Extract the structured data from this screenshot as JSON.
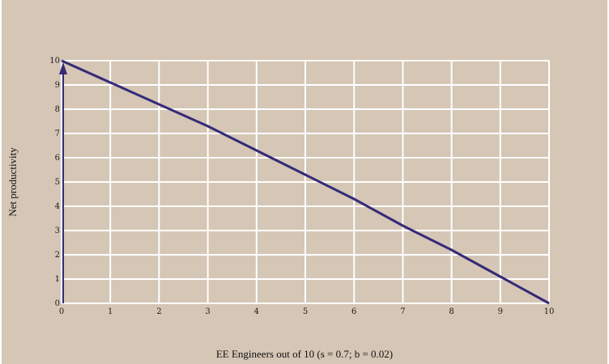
{
  "chart_data": {
    "type": "line",
    "title": "",
    "xlabel": "EE Engineers out of 10 (s = 0.7; b = 0.02)",
    "ylabel": "Net productivity",
    "xlim": [
      0,
      10
    ],
    "ylim": [
      0,
      10
    ],
    "xticks": [
      "0",
      "1",
      "2",
      "3",
      "4",
      "5",
      "6",
      "7",
      "8",
      "9",
      "10"
    ],
    "yticks": [
      "0",
      "1",
      "2",
      "3",
      "4",
      "5",
      "6",
      "7",
      "8",
      "9",
      "10"
    ],
    "grid": true,
    "series": [
      {
        "x": [
          0,
          1,
          2,
          3,
          4,
          5,
          6,
          7,
          8,
          9,
          10
        ],
        "values": [
          10,
          9.1,
          8.2,
          7.3,
          6.3,
          5.3,
          4.3,
          3.2,
          2.2,
          1.1,
          0
        ]
      }
    ],
    "annotations": [
      {
        "type": "arrow",
        "x": 0,
        "from_y": 0,
        "to_y": 10
      }
    ],
    "colors": {
      "background": "#d5c6b5",
      "grid": "#ffffff",
      "line": "#352a78",
      "arrow": "#352a78"
    }
  }
}
